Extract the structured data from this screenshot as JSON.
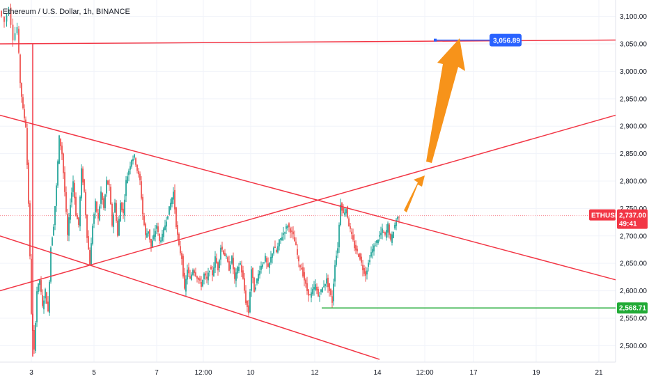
{
  "header": {
    "title": "Ethereum / U.S. Dollar, 1h, BINANCE"
  },
  "colors": {
    "up": "#26a69a",
    "down": "#ef5350",
    "trendline": "#f23645",
    "support": "#22ab37",
    "arrow": "#f7931a",
    "target_tag": "#2962ff"
  },
  "chart_data": {
    "type": "candlestick",
    "symbol": "ETHUSD",
    "interval": "1h",
    "exchange": "BINANCE",
    "ylim": [
      2470,
      3130
    ],
    "y_ticks": [
      "3,100.00",
      "3,050.00",
      "3,000.00",
      "2,950.00",
      "2,900.00",
      "2,850.00",
      "2,800.00",
      "2,750.00",
      "2,700.00",
      "2,650.00",
      "2,600.00",
      "2,550.00",
      "2,500.00"
    ],
    "x_ticks": [
      "3",
      "5",
      "7",
      "12:00",
      "10",
      "12",
      "14",
      "12:00",
      "17",
      "19",
      "21"
    ],
    "last_price": {
      "symbol": "ETHUSD",
      "price": "2,737.00",
      "countdown": "49:41"
    },
    "target_price": "3,056.89",
    "support_price": "2,568.71",
    "ohlc_series_note": "approximate hourly path",
    "path_points": [
      [
        0,
        3110
      ],
      [
        8,
        3090
      ],
      [
        14,
        3115
      ],
      [
        20,
        3060
      ],
      [
        26,
        3080
      ],
      [
        30,
        2980
      ],
      [
        34,
        2930
      ],
      [
        38,
        2900
      ],
      [
        42,
        2760
      ],
      [
        46,
        2560
      ],
      [
        50,
        2490
      ],
      [
        54,
        2600
      ],
      [
        58,
        2620
      ],
      [
        62,
        2570
      ],
      [
        66,
        2600
      ],
      [
        70,
        2560
      ],
      [
        74,
        2680
      ],
      [
        78,
        2720
      ],
      [
        82,
        2790
      ],
      [
        86,
        2880
      ],
      [
        90,
        2850
      ],
      [
        94,
        2780
      ],
      [
        98,
        2700
      ],
      [
        102,
        2760
      ],
      [
        106,
        2800
      ],
      [
        110,
        2740
      ],
      [
        114,
        2720
      ],
      [
        118,
        2820
      ],
      [
        122,
        2780
      ],
      [
        126,
        2700
      ],
      [
        130,
        2650
      ],
      [
        134,
        2720
      ],
      [
        138,
        2760
      ],
      [
        142,
        2730
      ],
      [
        146,
        2780
      ],
      [
        150,
        2750
      ],
      [
        154,
        2800
      ],
      [
        158,
        2790
      ],
      [
        162,
        2720
      ],
      [
        166,
        2760
      ],
      [
        170,
        2700
      ],
      [
        174,
        2760
      ],
      [
        178,
        2740
      ],
      [
        182,
        2800
      ],
      [
        186,
        2820
      ],
      [
        190,
        2840
      ],
      [
        194,
        2845
      ],
      [
        198,
        2820
      ],
      [
        202,
        2800
      ],
      [
        206,
        2740
      ],
      [
        210,
        2700
      ],
      [
        214,
        2710
      ],
      [
        218,
        2680
      ],
      [
        222,
        2700
      ],
      [
        226,
        2720
      ],
      [
        230,
        2690
      ],
      [
        234,
        2700
      ],
      [
        238,
        2720
      ],
      [
        242,
        2740
      ],
      [
        246,
        2760
      ],
      [
        250,
        2780
      ],
      [
        254,
        2720
      ],
      [
        258,
        2680
      ],
      [
        262,
        2660
      ],
      [
        266,
        2600
      ],
      [
        270,
        2640
      ],
      [
        274,
        2620
      ],
      [
        278,
        2640
      ],
      [
        282,
        2630
      ],
      [
        286,
        2620
      ],
      [
        290,
        2610
      ],
      [
        294,
        2630
      ],
      [
        298,
        2620
      ],
      [
        302,
        2640
      ],
      [
        306,
        2630
      ],
      [
        310,
        2660
      ],
      [
        314,
        2640
      ],
      [
        318,
        2680
      ],
      [
        322,
        2670
      ],
      [
        326,
        2660
      ],
      [
        330,
        2640
      ],
      [
        334,
        2660
      ],
      [
        338,
        2620
      ],
      [
        342,
        2640
      ],
      [
        346,
        2650
      ],
      [
        350,
        2620
      ],
      [
        354,
        2580
      ],
      [
        358,
        2560
      ],
      [
        362,
        2640
      ],
      [
        366,
        2600
      ],
      [
        370,
        2620
      ],
      [
        374,
        2640
      ],
      [
        378,
        2650
      ],
      [
        382,
        2660
      ],
      [
        386,
        2640
      ],
      [
        390,
        2660
      ],
      [
        394,
        2680
      ],
      [
        398,
        2670
      ],
      [
        402,
        2690
      ],
      [
        406,
        2700
      ],
      [
        410,
        2710
      ],
      [
        414,
        2720
      ],
      [
        418,
        2710
      ],
      [
        422,
        2700
      ],
      [
        426,
        2680
      ],
      [
        430,
        2650
      ],
      [
        434,
        2640
      ],
      [
        438,
        2620
      ],
      [
        442,
        2600
      ],
      [
        446,
        2590
      ],
      [
        450,
        2600
      ],
      [
        454,
        2610
      ],
      [
        458,
        2590
      ],
      [
        462,
        2600
      ],
      [
        466,
        2610
      ],
      [
        470,
        2620
      ],
      [
        474,
        2600
      ],
      [
        478,
        2580
      ],
      [
        482,
        2650
      ],
      [
        486,
        2680
      ],
      [
        490,
        2760
      ],
      [
        494,
        2740
      ],
      [
        498,
        2750
      ],
      [
        502,
        2720
      ],
      [
        506,
        2700
      ],
      [
        510,
        2680
      ],
      [
        514,
        2670
      ],
      [
        518,
        2660
      ],
      [
        522,
        2640
      ],
      [
        526,
        2630
      ],
      [
        530,
        2650
      ],
      [
        534,
        2670
      ],
      [
        538,
        2680
      ],
      [
        542,
        2690
      ],
      [
        546,
        2700
      ],
      [
        550,
        2710
      ],
      [
        554,
        2700
      ],
      [
        558,
        2720
      ],
      [
        562,
        2690
      ],
      [
        566,
        2710
      ],
      [
        570,
        2730
      ],
      [
        574,
        2737
      ]
    ],
    "trendlines": [
      {
        "name": "resistance-line",
        "p1": [
          0,
          3050
        ],
        "p2": [
          884,
          3057
        ]
      },
      {
        "name": "upper-descending",
        "p1": [
          0,
          2920
        ],
        "p2": [
          884,
          2620
        ]
      },
      {
        "name": "ascending",
        "p1": [
          0,
          2600
        ],
        "p2": [
          884,
          2920
        ]
      },
      {
        "name": "lower-descending",
        "p1": [
          0,
          2700
        ],
        "p2": [
          545,
          2475
        ]
      },
      {
        "name": "vertical-drop",
        "p1": [
          47,
          3050
        ],
        "p2": [
          47,
          2480
        ]
      }
    ]
  }
}
